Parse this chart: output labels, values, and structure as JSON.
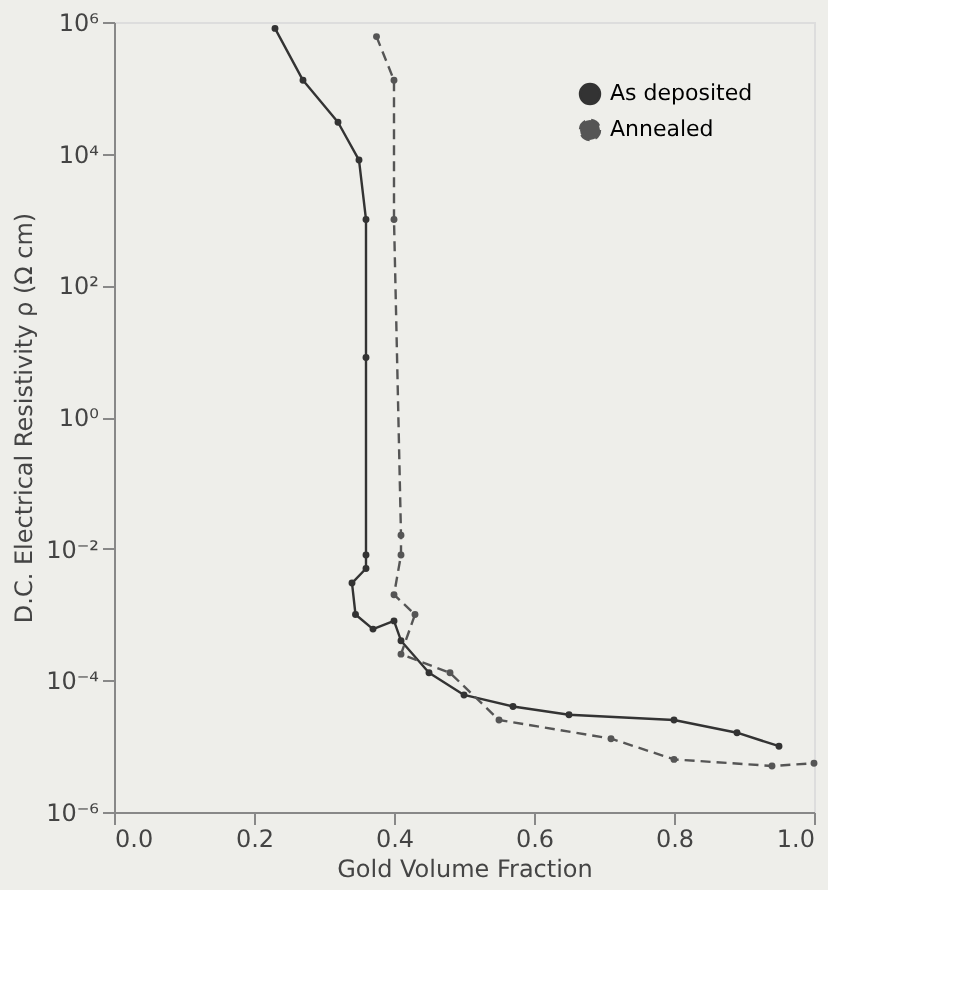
{
  "chart_data": {
    "type": "line",
    "xlabel": "Gold Volume Fraction",
    "ylabel": "D.C. Electrical Resistivity ρ (Ω cm)",
    "log": "y",
    "xlim": [
      0,
      1
    ],
    "ylim": [
      1e-06,
      1000000.0
    ],
    "xticks": [
      {
        "value": 0,
        "label": "0.0"
      },
      0.2,
      0.4,
      0.6,
      0.8,
      {
        "value": 1,
        "label": "1.0"
      }
    ],
    "yticks": [
      {
        "value": 1e-06,
        "label": "10⁻⁶"
      },
      {
        "value": 0.0001,
        "label": "10⁻⁴"
      },
      {
        "value": 0.01,
        "label": "10⁻²"
      },
      {
        "value": 1,
        "label": "10⁰"
      },
      {
        "value": 100,
        "label": "10²"
      },
      {
        "value": 10000,
        "label": "10⁴"
      },
      {
        "value": 1000000,
        "label": "10⁶"
      }
    ],
    "grid": false,
    "legend": "top right",
    "marker": "circle",
    "series": [
      {
        "name": "As deposited",
        "color": "#333333",
        "line_style": "solid",
        "x": [
          0.23,
          0.27,
          0.32,
          0.35,
          0.36,
          0.36,
          0.36,
          0.36,
          0.34,
          0.345,
          0.37,
          0.4,
          0.41,
          0.45,
          0.5,
          0.57,
          0.65,
          0.8,
          0.89,
          0.95
        ],
        "values": [
          800000,
          130000,
          30000,
          8000,
          1000,
          8,
          0.008,
          0.005,
          0.003,
          0.001,
          0.0006,
          0.0008,
          0.0004,
          0.00013,
          6e-05,
          4e-05,
          3e-05,
          2.5e-05,
          1.6e-05,
          1e-05
        ]
      },
      {
        "name": "Annealed",
        "color": "#555555",
        "line_style": "dashed",
        "x": [
          0.375,
          0.4,
          0.4,
          0.41,
          0.41,
          0.4,
          0.43,
          0.41,
          0.48,
          0.55,
          0.71,
          0.8,
          0.94,
          1.0
        ],
        "values": [
          600000,
          130000,
          1000,
          0.016,
          0.008,
          0.002,
          0.001,
          0.00025,
          0.00013,
          2.5e-05,
          1.3e-05,
          6.3e-06,
          5e-06,
          5.5e-06
        ]
      }
    ]
  }
}
